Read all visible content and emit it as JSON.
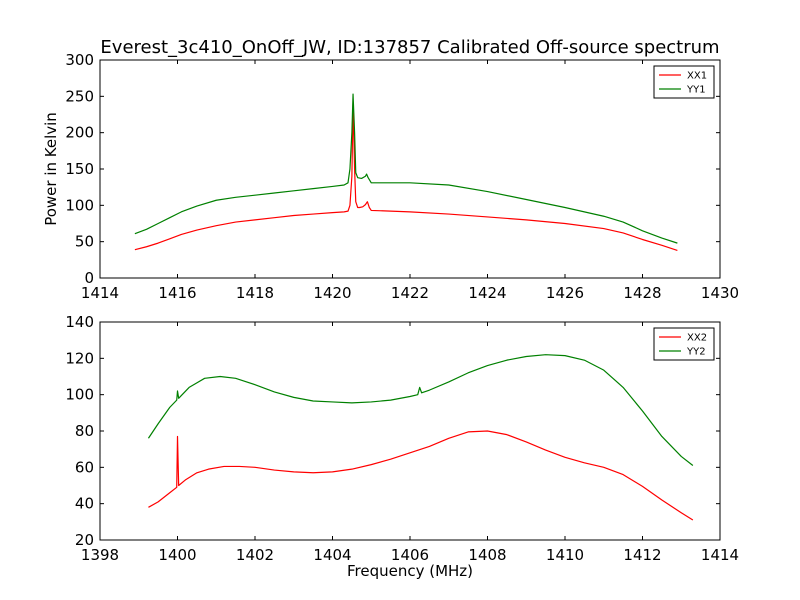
{
  "figure": {
    "title": "Everest_3c410_OnOff_JW, ID:137857 Calibrated Off-source spectrum"
  },
  "chart_data": [
    {
      "type": "line",
      "title": "Everest_3c410_OnOff_JW, ID:137857 Calibrated Off-source spectrum",
      "xlabel": "",
      "ylabel": "Power in Kelvin",
      "xlim": [
        1414,
        1430
      ],
      "ylim": [
        0,
        300
      ],
      "xticks": [
        1414,
        1416,
        1418,
        1420,
        1422,
        1424,
        1426,
        1428,
        1430
      ],
      "yticks": [
        0,
        50,
        100,
        150,
        200,
        250,
        300
      ],
      "grid": false,
      "legend_position": "top-right",
      "series": [
        {
          "name": "XX1",
          "color": "#ff0000",
          "points": [
            [
              1414.9,
              39
            ],
            [
              1415.2,
              43
            ],
            [
              1415.5,
              48
            ],
            [
              1415.8,
              54
            ],
            [
              1416.1,
              60
            ],
            [
              1416.5,
              66
            ],
            [
              1417.0,
              72
            ],
            [
              1417.5,
              77
            ],
            [
              1418.0,
              80
            ],
            [
              1418.5,
              83
            ],
            [
              1419.0,
              86
            ],
            [
              1419.5,
              88
            ],
            [
              1420.0,
              90
            ],
            [
              1420.3,
              91
            ],
            [
              1420.4,
              92
            ],
            [
              1420.45,
              100
            ],
            [
              1420.5,
              140
            ],
            [
              1420.53,
              240
            ],
            [
              1420.57,
              150
            ],
            [
              1420.6,
              105
            ],
            [
              1420.65,
              97
            ],
            [
              1420.7,
              97
            ],
            [
              1420.78,
              98
            ],
            [
              1420.85,
              101
            ],
            [
              1420.9,
              105
            ],
            [
              1420.95,
              97
            ],
            [
              1421.0,
              93
            ],
            [
              1421.5,
              92
            ],
            [
              1422.0,
              91
            ],
            [
              1423.0,
              88
            ],
            [
              1424.0,
              84
            ],
            [
              1425.0,
              80
            ],
            [
              1426.0,
              75
            ],
            [
              1427.0,
              68
            ],
            [
              1427.5,
              62
            ],
            [
              1428.0,
              53
            ],
            [
              1428.5,
              45
            ],
            [
              1428.9,
              38
            ]
          ]
        },
        {
          "name": "YY1",
          "color": "#008000",
          "points": [
            [
              1414.9,
              61
            ],
            [
              1415.2,
              67
            ],
            [
              1415.5,
              75
            ],
            [
              1415.8,
              83
            ],
            [
              1416.1,
              91
            ],
            [
              1416.5,
              99
            ],
            [
              1417.0,
              107
            ],
            [
              1417.5,
              111
            ],
            [
              1418.0,
              114
            ],
            [
              1418.5,
              117
            ],
            [
              1419.0,
              120
            ],
            [
              1419.5,
              123
            ],
            [
              1420.0,
              126
            ],
            [
              1420.3,
              128
            ],
            [
              1420.4,
              131
            ],
            [
              1420.45,
              150
            ],
            [
              1420.5,
              200
            ],
            [
              1420.53,
              253
            ],
            [
              1420.57,
              200
            ],
            [
              1420.6,
              145
            ],
            [
              1420.65,
              138
            ],
            [
              1420.75,
              137
            ],
            [
              1420.85,
              140
            ],
            [
              1420.88,
              143
            ],
            [
              1420.92,
              138
            ],
            [
              1421.0,
              131
            ],
            [
              1421.5,
              131
            ],
            [
              1422.0,
              131
            ],
            [
              1423.0,
              128
            ],
            [
              1424.0,
              119
            ],
            [
              1425.0,
              108
            ],
            [
              1426.0,
              97
            ],
            [
              1427.0,
              85
            ],
            [
              1427.5,
              77
            ],
            [
              1428.0,
              65
            ],
            [
              1428.5,
              55
            ],
            [
              1428.9,
              48
            ]
          ]
        }
      ]
    },
    {
      "type": "line",
      "title": "",
      "xlabel": "Frequency (MHz)",
      "ylabel": "",
      "xlim": [
        1398,
        1414
      ],
      "ylim": [
        20,
        140
      ],
      "xticks": [
        1398,
        1400,
        1402,
        1404,
        1406,
        1408,
        1410,
        1412,
        1414
      ],
      "yticks": [
        20,
        40,
        60,
        80,
        100,
        120,
        140
      ],
      "grid": false,
      "legend_position": "top-right",
      "series": [
        {
          "name": "XX2",
          "color": "#ff0000",
          "points": [
            [
              1399.25,
              38
            ],
            [
              1399.5,
              41
            ],
            [
              1399.8,
              46
            ],
            [
              1399.98,
              49
            ],
            [
              1400.0,
              77
            ],
            [
              1400.03,
              50
            ],
            [
              1400.2,
              53
            ],
            [
              1400.5,
              57
            ],
            [
              1400.8,
              59
            ],
            [
              1401.2,
              60.5
            ],
            [
              1401.6,
              60.5
            ],
            [
              1402.0,
              60
            ],
            [
              1402.5,
              58.5
            ],
            [
              1403.0,
              57.5
            ],
            [
              1403.5,
              57
            ],
            [
              1404.0,
              57.5
            ],
            [
              1404.5,
              59
            ],
            [
              1405.0,
              61.5
            ],
            [
              1405.5,
              64.5
            ],
            [
              1406.0,
              68
            ],
            [
              1406.5,
              71.5
            ],
            [
              1407.0,
              76
            ],
            [
              1407.5,
              79.5
            ],
            [
              1408.0,
              80
            ],
            [
              1408.5,
              78
            ],
            [
              1409.0,
              74
            ],
            [
              1409.5,
              69.5
            ],
            [
              1410.0,
              65.5
            ],
            [
              1410.5,
              62.5
            ],
            [
              1411.0,
              60
            ],
            [
              1411.5,
              56
            ],
            [
              1412.0,
              49.5
            ],
            [
              1412.5,
              42
            ],
            [
              1413.0,
              35
            ],
            [
              1413.3,
              31
            ]
          ]
        },
        {
          "name": "YY2",
          "color": "#008000",
          "points": [
            [
              1399.25,
              76
            ],
            [
              1399.5,
              84
            ],
            [
              1399.8,
              93
            ],
            [
              1399.98,
              97
            ],
            [
              1400.0,
              102
            ],
            [
              1400.03,
              98
            ],
            [
              1400.3,
              104
            ],
            [
              1400.7,
              109
            ],
            [
              1401.1,
              110
            ],
            [
              1401.5,
              109
            ],
            [
              1402.0,
              105.5
            ],
            [
              1402.5,
              101.5
            ],
            [
              1403.0,
              98.5
            ],
            [
              1403.5,
              96.5
            ],
            [
              1404.0,
              96
            ],
            [
              1404.5,
              95.5
            ],
            [
              1405.0,
              96
            ],
            [
              1405.5,
              97
            ],
            [
              1406.0,
              99
            ],
            [
              1406.2,
              100
            ],
            [
              1406.25,
              104
            ],
            [
              1406.3,
              101
            ],
            [
              1406.5,
              102.5
            ],
            [
              1407.0,
              107
            ],
            [
              1407.5,
              112
            ],
            [
              1408.0,
              116
            ],
            [
              1408.5,
              119
            ],
            [
              1409.0,
              121
            ],
            [
              1409.5,
              122
            ],
            [
              1410.0,
              121.5
            ],
            [
              1410.5,
              119
            ],
            [
              1411.0,
              113.5
            ],
            [
              1411.5,
              104
            ],
            [
              1412.0,
              91
            ],
            [
              1412.5,
              77
            ],
            [
              1413.0,
              66
            ],
            [
              1413.3,
              61
            ]
          ]
        }
      ]
    }
  ]
}
